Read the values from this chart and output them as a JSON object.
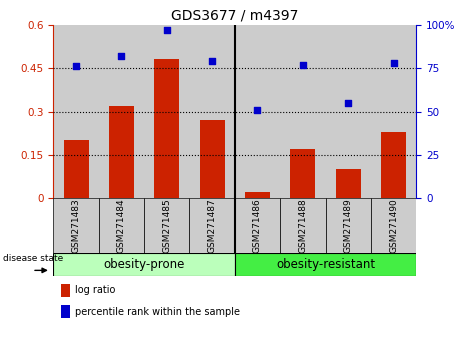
{
  "title": "GDS3677 / m4397",
  "categories": [
    "GSM271483",
    "GSM271484",
    "GSM271485",
    "GSM271487",
    "GSM271486",
    "GSM271488",
    "GSM271489",
    "GSM271490"
  ],
  "log_ratio": [
    0.2,
    0.32,
    0.48,
    0.27,
    0.02,
    0.17,
    0.1,
    0.23
  ],
  "percentile_rank": [
    76,
    82,
    97,
    79,
    51,
    77,
    55,
    78
  ],
  "bar_color": "#cc2200",
  "dot_color": "#0000cc",
  "left_ylim": [
    0,
    0.6
  ],
  "right_ylim": [
    0,
    100
  ],
  "left_yticks": [
    0,
    0.15,
    0.3,
    0.45,
    0.6
  ],
  "right_yticks": [
    0,
    25,
    50,
    75,
    100
  ],
  "left_yticklabels": [
    "0",
    "0.15",
    "0.3",
    "0.45",
    "0.6"
  ],
  "right_yticklabels": [
    "0",
    "25",
    "50",
    "75",
    "100%"
  ],
  "hlines": [
    0.15,
    0.3,
    0.45
  ],
  "group1_label": "obesity-prone",
  "group2_label": "obesity-resistant",
  "group1_color": "#bbffbb",
  "group2_color": "#44ee44",
  "col_bg_color": "#cccccc",
  "disease_state_label": "disease state",
  "legend_bar_label": "log ratio",
  "legend_dot_label": "percentile rank within the sample",
  "title_fontsize": 10,
  "tick_fontsize": 7.5,
  "label_fontsize": 8,
  "group_fontsize": 8.5
}
